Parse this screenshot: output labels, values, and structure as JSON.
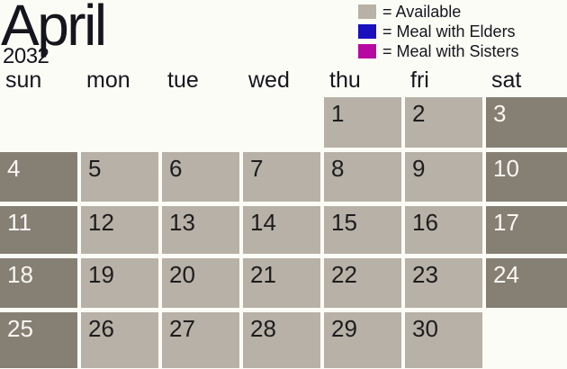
{
  "title": {
    "month": "April",
    "year": "2032"
  },
  "legend": {
    "items": [
      {
        "label": "= Available",
        "swatch": "available"
      },
      {
        "label": "= Meal with Elders",
        "swatch": "meal_with_elders"
      },
      {
        "label": "= Meal with Sisters",
        "swatch": "meal_with_sisters"
      }
    ]
  },
  "weekday_headers": [
    "sun",
    "mon",
    "tue",
    "wed",
    "thu",
    "fri",
    "sat"
  ],
  "calendar": {
    "days": [
      "",
      "",
      "",
      "",
      "1",
      "2",
      "3",
      "4",
      "5",
      "6",
      "7",
      "8",
      "9",
      "10",
      "11",
      "12",
      "13",
      "14",
      "15",
      "16",
      "17",
      "18",
      "19",
      "20",
      "21",
      "22",
      "23",
      "24",
      "25",
      "26",
      "27",
      "28",
      "29",
      "30",
      ""
    ]
  },
  "colors": {
    "available": "#b7b1a7",
    "weekend_cell": "#867f74",
    "meal_with_elders": "#1b10bd",
    "meal_with_sisters": "#b709a1"
  }
}
